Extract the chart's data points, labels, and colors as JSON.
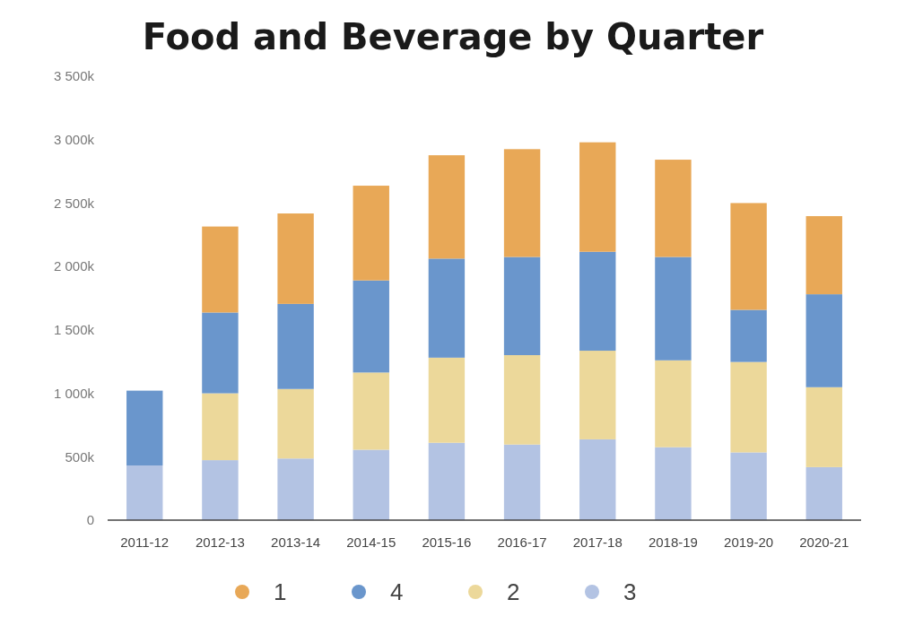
{
  "chart_data": {
    "type": "bar",
    "title": "Food and Beverage by Quarter",
    "stacked": true,
    "legend": "bottom",
    "grid": false,
    "categories": [
      "2011-12",
      "2012-13",
      "2013-14",
      "2014-15",
      "2015-16",
      "2016-17",
      "2017-18",
      "2018-19",
      "2019-20",
      "2020-21"
    ],
    "ylim": [
      0,
      3500
    ],
    "yticks": [
      {
        "value": 0,
        "label": "0"
      },
      {
        "value": 500,
        "label": "500k"
      },
      {
        "value": 1000,
        "label": "1 000k"
      },
      {
        "value": 1500,
        "label": "1 500k"
      },
      {
        "value": 2000,
        "label": "2 000k"
      },
      {
        "value": 2500,
        "label": "2 500k"
      },
      {
        "value": 3000,
        "label": "3 000k"
      },
      {
        "value": 3500,
        "label": "3 500k"
      }
    ],
    "series": [
      {
        "name": "3",
        "color": "#b3c3e3",
        "values": [
          431,
          473,
          486,
          555,
          610,
          596,
          637,
          575,
          534,
          418
        ]
      },
      {
        "name": "2",
        "color": "#ecd89a",
        "values": [
          null,
          527,
          548,
          609,
          671,
          705,
          699,
          685,
          713,
          630
        ]
      },
      {
        "name": "4",
        "color": "#6a96cc",
        "values": [
          590,
          637,
          671,
          726,
          781,
          774,
          780,
          815,
          411,
          733
        ]
      },
      {
        "name": "1",
        "color": "#e8a857",
        "values": [
          null,
          678,
          713,
          747,
          815,
          850,
          863,
          767,
          842,
          616
        ]
      }
    ]
  }
}
